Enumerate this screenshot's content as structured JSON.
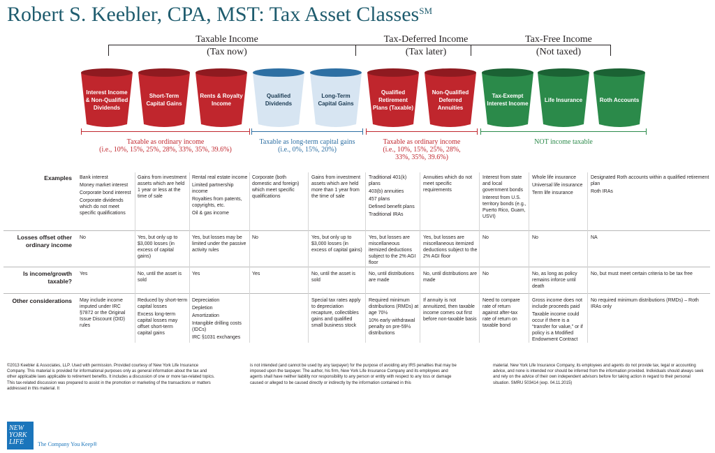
{
  "title": {
    "main": "Robert S. Keebler, CPA, MST: Tax Asset Classes",
    "mark": "SM"
  },
  "groups": [
    {
      "label": "Taxable Income",
      "sub": "(Tax now)"
    },
    {
      "label": "Tax-Deferred Income",
      "sub": "(Tax later)"
    },
    {
      "label": "Tax-Free Income",
      "sub": "(Not taxed)"
    }
  ],
  "colors": {
    "red": "#c0262d",
    "blue": "#2d6fa3",
    "lightblue": "#d7e5f2",
    "green": "#2b8a4a",
    "title": "#1f5c6e",
    "brand": "#1b75bb"
  },
  "cups": [
    {
      "label": "Interest Income & Non-Qualified Dividends",
      "color": "red"
    },
    {
      "label": "Short-Term Capital Gains",
      "color": "red"
    },
    {
      "label": "Rents & Royalty Income",
      "color": "red"
    },
    {
      "label": "Qualified Dividends",
      "color": "lightblue"
    },
    {
      "label": "Long-Term Capital Gains",
      "color": "lightblue"
    },
    {
      "label": "Qualified Retirement Plans (Taxable)",
      "color": "red"
    },
    {
      "label": "Non-Qualified Deferred Annuities",
      "color": "red"
    },
    {
      "label": "Tax-Exempt Interest Income",
      "color": "green"
    },
    {
      "label": "Life Insurance",
      "color": "green"
    },
    {
      "label": "Roth Accounts",
      "color": "green"
    }
  ],
  "tax_labels": [
    {
      "title": "Taxable as ordinary income",
      "rates": "(i.e., 10%, 15%, 25%, 28%, 33%, 35%, 39.6%)"
    },
    {
      "title": "Taxable as long-term capital gains",
      "rates": "(i.e., 0%, 15%, 20%)"
    },
    {
      "title": "Taxable as ordinary income",
      "rates": "(i.e., 10%, 15%, 25%, 28%,",
      "rates2": "33%, 35%, 39.6%)"
    },
    {
      "title": "NOT income taxable",
      "rates": ""
    }
  ],
  "row_headers": {
    "examples": "Examples",
    "losses": "Losses offset other ordinary income",
    "growth": "Is income/growth taxable?",
    "other": "Other considerations"
  },
  "rows": {
    "examples": [
      [
        "Bank interest",
        "Money market interest",
        "Corporate bond interest",
        "Corporate dividends which do not meet specific qualifications"
      ],
      [
        "Gains from investment assets which are held 1 year or less at the time of sale"
      ],
      [
        "Rental real estate income",
        "Limited partnership income",
        "Royalties from patents, copyrights, etc.",
        "Oil & gas income"
      ],
      [
        "Corporate (both domestic and foreign) which meet specific qualifications"
      ],
      [
        "Gains from investment assets which are held more than 1 year from the time of sale"
      ],
      [
        "Traditional 401(k) plans",
        "403(b) annuities",
        "457 plans",
        "Defined benefit plans",
        "Traditional IRAs"
      ],
      [
        "Annuities which do not meet specific requirements"
      ],
      [
        "Interest from state and local government bonds",
        "Interest from U.S. territory bonds (e.g., Puerto Rico, Guam, USVI)"
      ],
      [
        "Whole life insurance",
        "Universal life insurance",
        "Term life insurance"
      ],
      [
        "Designated Roth accounts within a qualified retirement plan",
        "Roth IRAs"
      ]
    ],
    "losses": [
      "No",
      "Yes, but only up to $3,000 losses (in excess of capital gains)",
      "Yes, but losses may be limited under the passive activity rules",
      "No",
      "Yes, but only up to $3,000 losses (in excess of capital gains)",
      "Yes, but losses are miscellaneous itemized deductions subject to the 2% AGI floor",
      "Yes, but losses are miscellaneous itemized deductions subject to the 2% AGI floor",
      "No",
      "No",
      "NA"
    ],
    "growth": [
      "Yes",
      "No, until the asset is sold",
      "Yes",
      "Yes",
      "No, until the asset is sold",
      "No, until distributions are made",
      "No, until distributions are made",
      "No",
      "No, as long as policy remains inforce until death",
      "No, but must meet certain criteria to be tax free"
    ],
    "other": [
      [
        "May include income imputed under IRC §7872 or the Original Issue Discount (OID) rules"
      ],
      [
        "Reduced by short-term capital losses",
        "Excess long-term capital losses may offset short-term capital gains"
      ],
      [
        "Depreciation",
        "Depletion",
        "Amortization",
        "Intangible drilling costs (IDCs)",
        "IRC §1031 exchanges"
      ],
      [
        ""
      ],
      [
        "Special tax rates apply to depreciation recapture, collectibles gains and qualified small business stock"
      ],
      [
        "Required minimum distributions (RMDs) at age 70½",
        "10% early withdrawal penalty on pre-59½ distributions"
      ],
      [
        "If annuity is not annuitized, then taxable income comes out first before non-taxable basis"
      ],
      [
        "Need to compare rate of return against after-tax rate of return on taxable bond"
      ],
      [
        "Gross income does not include proceeds paid",
        "Taxable income could occur if there is a “transfer for value,” or if policy is a Modified Endowment Contract"
      ],
      [
        "No required minimum distributions (RMDs) – Roth IRAs only"
      ]
    ]
  },
  "footer": [
    "©2013 Keebler & Associates, LLP. Used with permission. Provided courtesy of New York Life Insurance Company. This material is provided for informational purposes only as general information about the tax and other applicable laws applicable to retirement benefits. It includes a discussion of one or more tax-related topics. This tax-related discussion was prepared to assist in the promotion or marketing of the transactions or matters addressed in this material. It",
    "is not intended (and cannot be used by any taxpayer) for the purpose of avoiding any IRS penalties that may be imposed upon the taxpayer. The author, his firm, New York Life Insurance Company and its employees and agents shall have neither liability nor responsibility to any person or entity with respect to any loss or damage caused or alleged to be caused directly or indirectly by the information contained in this",
    "material. New York Life Insurance Company, its employees and agents do not provide tax, legal or accounting advice, and none is intended nor should be inferred from the information provided. Individuals should always seek and rely on the advice of their own independent advisors before for taking action in regard to their personal situation. SMRU 503414 (exp. 04.11.2015)"
  ],
  "logo": {
    "line1": "NEW",
    "line2": "YORK",
    "line3": "LIFE",
    "tagline": "The Company You Keep®"
  }
}
